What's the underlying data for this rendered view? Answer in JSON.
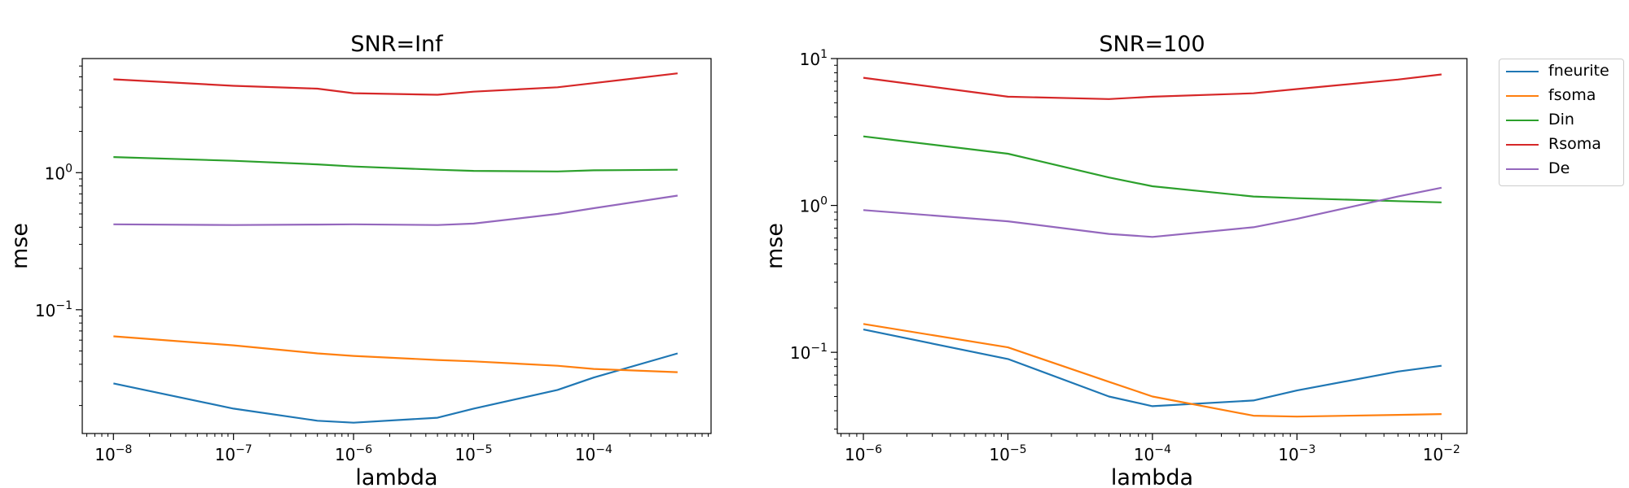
{
  "legend": {
    "placement": "outside-right",
    "entries": [
      {
        "name": "fneurite",
        "color": "#1f77b4"
      },
      {
        "name": "fsoma",
        "color": "#ff7f0e"
      },
      {
        "name": "Din",
        "color": "#2ca02c"
      },
      {
        "name": "Rsoma",
        "color": "#d62728"
      },
      {
        "name": "De",
        "color": "#9467bd"
      }
    ]
  },
  "chart_data": [
    {
      "type": "line",
      "title": "SNR=Inf",
      "xlabel": "lambda",
      "ylabel": "mse",
      "xscale": "log",
      "yscale": "log",
      "xlim": [
        5.5e-09,
        0.00095
      ],
      "ylim": [
        0.0125,
        6.8
      ],
      "grid": false,
      "xticks": [
        {
          "value": 1e-08,
          "mant": "10",
          "exp": "−8"
        },
        {
          "value": 1e-07,
          "mant": "10",
          "exp": "−7"
        },
        {
          "value": 1e-06,
          "mant": "10",
          "exp": "−6"
        },
        {
          "value": 1e-05,
          "mant": "10",
          "exp": "−5"
        },
        {
          "value": 0.0001,
          "mant": "10",
          "exp": "−4"
        }
      ],
      "yticks": [
        {
          "value": 1,
          "label": "10",
          "exp": "0"
        },
        {
          "value": 0.1,
          "label": "10",
          "exp": "−1"
        }
      ],
      "x": [
        1e-08,
        1e-07,
        5e-07,
        1e-06,
        5e-06,
        1e-05,
        5e-05,
        0.0001,
        0.0005
      ],
      "series": [
        {
          "name": "fneurite",
          "color": "#1f77b4",
          "values": [
            0.029,
            0.019,
            0.0155,
            0.015,
            0.0163,
            0.019,
            0.026,
            0.032,
            0.048
          ]
        },
        {
          "name": "fsoma",
          "color": "#ff7f0e",
          "values": [
            0.064,
            0.055,
            0.048,
            0.046,
            0.043,
            0.042,
            0.039,
            0.037,
            0.035
          ]
        },
        {
          "name": "Din",
          "color": "#2ca02c",
          "values": [
            1.3,
            1.22,
            1.15,
            1.11,
            1.05,
            1.03,
            1.02,
            1.04,
            1.05
          ]
        },
        {
          "name": "Rsoma",
          "color": "#d62728",
          "values": [
            4.8,
            4.3,
            4.1,
            3.8,
            3.7,
            3.9,
            4.2,
            4.5,
            5.3
          ]
        },
        {
          "name": "De",
          "color": "#9467bd",
          "values": [
            0.42,
            0.415,
            0.418,
            0.42,
            0.415,
            0.425,
            0.5,
            0.55,
            0.68
          ]
        }
      ]
    },
    {
      "type": "line",
      "title": "SNR=100",
      "xlabel": "lambda",
      "ylabel": "mse",
      "xscale": "log",
      "yscale": "log",
      "xlim": [
        6.6e-07,
        0.015
      ],
      "ylim": [
        0.028,
        10
      ],
      "grid": false,
      "xticks": [
        {
          "value": 1e-06,
          "mant": "10",
          "exp": "−6"
        },
        {
          "value": 1e-05,
          "mant": "10",
          "exp": "−5"
        },
        {
          "value": 0.0001,
          "mant": "10",
          "exp": "−4"
        },
        {
          "value": 0.001,
          "mant": "10",
          "exp": "−3"
        },
        {
          "value": 0.01,
          "mant": "10",
          "exp": "−2"
        }
      ],
      "yticks": [
        {
          "value": 10,
          "label": "10",
          "exp": "1"
        },
        {
          "value": 1,
          "label": "10",
          "exp": "0"
        },
        {
          "value": 0.1,
          "label": "10",
          "exp": "−1"
        }
      ],
      "x": [
        1e-06,
        1e-05,
        5e-05,
        0.0001,
        0.0005,
        0.001,
        0.005,
        0.01
      ],
      "series": [
        {
          "name": "fneurite",
          "color": "#1f77b4",
          "values": [
            0.143,
            0.09,
            0.05,
            0.043,
            0.047,
            0.055,
            0.074,
            0.081
          ]
        },
        {
          "name": "fsoma",
          "color": "#ff7f0e",
          "values": [
            0.156,
            0.108,
            0.063,
            0.05,
            0.037,
            0.0365,
            0.0375,
            0.038
          ]
        },
        {
          "name": "Din",
          "color": "#2ca02c",
          "values": [
            2.95,
            2.25,
            1.55,
            1.35,
            1.15,
            1.12,
            1.07,
            1.05
          ]
        },
        {
          "name": "Rsoma",
          "color": "#d62728",
          "values": [
            7.4,
            5.5,
            5.3,
            5.5,
            5.8,
            6.2,
            7.2,
            7.8
          ]
        },
        {
          "name": "De",
          "color": "#9467bd",
          "values": [
            0.93,
            0.78,
            0.64,
            0.61,
            0.71,
            0.81,
            1.15,
            1.32
          ]
        }
      ]
    }
  ]
}
